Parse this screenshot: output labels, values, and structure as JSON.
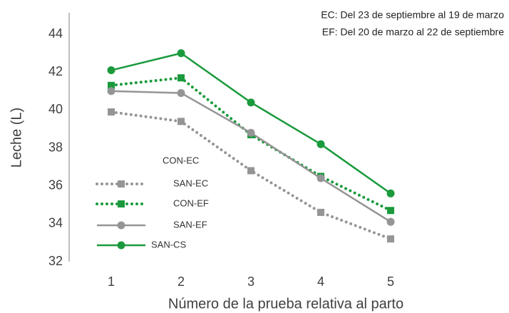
{
  "chart_data": {
    "type": "line",
    "annotations": [
      "EC: Del 23 de septiembre al 19 de marzo",
      "EF: Del 20 de marzo al 22 de septiembre"
    ],
    "y_label": "Leche (L)",
    "x_label": "Número de la prueba relativa al parto",
    "categories": [
      "1",
      "2",
      "3",
      "4",
      "5"
    ],
    "legend_title": "CON-EC",
    "series": [
      {
        "name": "SAN-EC",
        "color": "#959595",
        "line": "dotted",
        "marker": "square",
        "values": [
          39.9,
          39.4,
          36.8,
          34.6,
          33.2
        ]
      },
      {
        "name": "CON-EF",
        "color": "#1a9a3c",
        "line": "dotted",
        "marker": "square",
        "values": [
          41.3,
          41.7,
          38.7,
          36.5,
          34.7
        ]
      },
      {
        "name": "SAN-EF",
        "color": "#959595",
        "line": "solid",
        "marker": "circle",
        "values": [
          41.0,
          40.9,
          38.8,
          36.4,
          34.1
        ]
      },
      {
        "name": "SAN-CS",
        "color": "#1a9a3c",
        "line": "solid",
        "marker": "circle",
        "values": [
          42.1,
          43.0,
          40.4,
          38.2,
          35.6
        ]
      }
    ],
    "ylim": [
      32,
      45
    ],
    "yticks": [
      32,
      34,
      36,
      38,
      40,
      42,
      44
    ],
    "grid": false
  }
}
